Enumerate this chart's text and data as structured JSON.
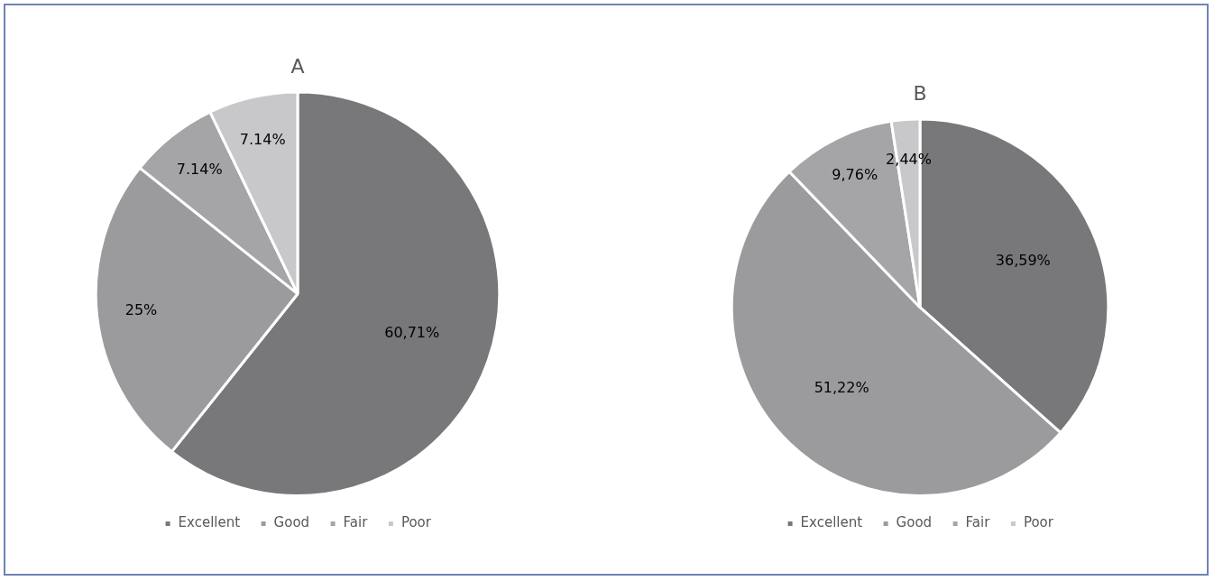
{
  "chart_data": [
    {
      "type": "pie",
      "title": "A",
      "categories": [
        "Excellent",
        "Good",
        "Fair",
        "Poor"
      ],
      "values": [
        60.71,
        25,
        7.14,
        7.14
      ],
      "colors": [
        "#78787a",
        "#9b9b9d",
        "#a5a5a7",
        "#c8c8ca"
      ],
      "value_labels": [
        "60,71%",
        "25%",
        "7.14%",
        "7.14%"
      ],
      "legend": "bottom"
    },
    {
      "type": "pie",
      "title": "B",
      "categories": [
        "Excellent",
        "Good",
        "Fair",
        "Poor"
      ],
      "values": [
        36.59,
        51.22,
        9.76,
        2.44
      ],
      "colors": [
        "#78787a",
        "#9b9b9d",
        "#a5a5a7",
        "#c8c8ca"
      ],
      "value_labels": [
        "36,59%",
        "51,22%",
        "9,76%",
        "2,44%"
      ],
      "legend": "bottom"
    }
  ]
}
